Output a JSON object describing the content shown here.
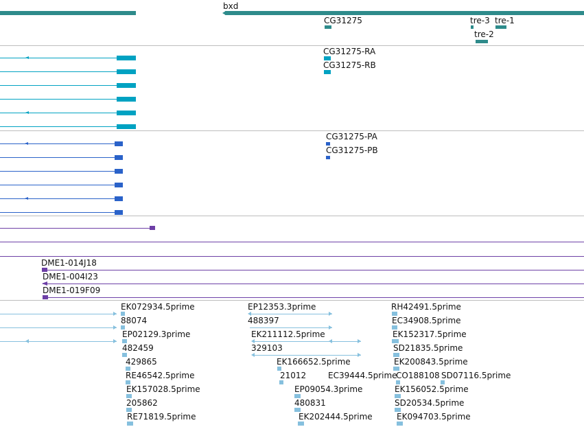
{
  "colors": {
    "gene": "#2e8b8b",
    "transcript": "#00a2c2",
    "cds": "#2a62c9",
    "clone": "#6d3fa6",
    "est": "#86c0de",
    "separator": "#bdbdbd"
  },
  "genes": {
    "bxd": "bxd",
    "cg31275": "CG31275",
    "tre3": "tre-3",
    "tre1": "tre-1",
    "tre2": "tre-2"
  },
  "transcripts": {
    "ra": "CG31275-RA",
    "rb": "CG31275-RB"
  },
  "proteins": {
    "pa": "CG31275-PA",
    "pb": "CG31275-PB"
  },
  "clones": {
    "c1": "DME1-014J18",
    "c2": "DME1-004I23",
    "c3": "DME1-019F09"
  },
  "ests": {
    "col1": [
      "EK072934.5prime",
      "88074",
      "EP02129.3prime",
      "482459",
      "429865",
      "RE46542.5prime",
      "EK157028.5prime",
      "205862",
      "RE71819.5prime"
    ],
    "col2": [
      "EP12353.3prime",
      "488397",
      "EK211112.5prime",
      "329103",
      "EK166652.5prime",
      "21012",
      "EC39444.5prime",
      "EP09054.3prime",
      "480831",
      "EK202444.5prime"
    ],
    "col3": [
      "RH42491.5prime",
      "EC34908.5prime",
      "EK152317.5prime",
      "SD21835.5prime",
      "EK200843.5prime",
      "CO188108",
      "SD07116.5prime",
      "EK156052.5prime",
      "SD20534.5prime",
      "EK094703.5prime"
    ]
  }
}
